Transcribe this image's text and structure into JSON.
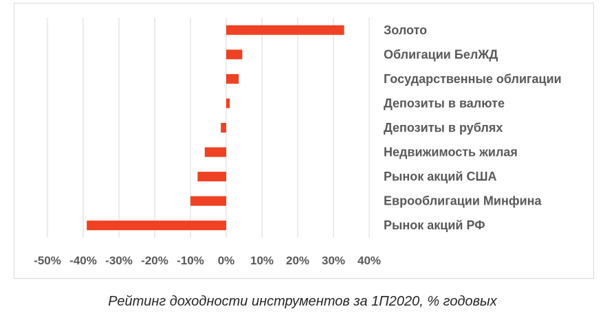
{
  "caption": "Рейтинг доходности инструментов за 1П2020, % годовых",
  "chart_data": {
    "type": "bar",
    "orientation": "horizontal",
    "categories": [
      "Золото",
      "Облигации БелЖД",
      "Государственные облигации",
      "Депозиты в валюте",
      "Депозиты в рублях",
      "Недвижимость жилая",
      "Рынок акций США",
      "Еврооблигации Минфина",
      "Рынок акций РФ"
    ],
    "values": [
      33,
      4.5,
      3.5,
      1,
      -1.5,
      -6,
      -8,
      -10,
      -39
    ],
    "ticks": [
      "-50%",
      "-40%",
      "-30%",
      "-20%",
      "-10%",
      "0%",
      "10%",
      "20%",
      "30%",
      "40%"
    ],
    "tick_values": [
      -50,
      -40,
      -30,
      -20,
      -10,
      0,
      10,
      20,
      30,
      40
    ],
    "xlim": [
      -50,
      40
    ],
    "grid": true,
    "bar_color": "#ef4123",
    "grid_color": "#d9d9d9"
  }
}
